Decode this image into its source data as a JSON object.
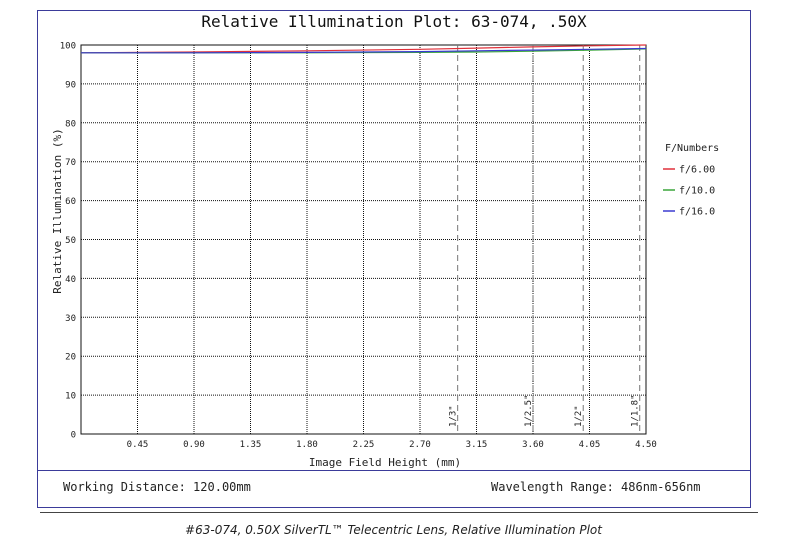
{
  "chart_data": {
    "type": "line",
    "title": "Relative Illumination Plot: 63-074, .50X",
    "xlabel": "Image Field Height (mm)",
    "ylabel": "Relative Illumination (%)",
    "xlim": [
      0,
      4.5
    ],
    "ylim": [
      0,
      100
    ],
    "x_ticks": [
      "0.45",
      "0.90",
      "1.35",
      "1.80",
      "2.25",
      "2.70",
      "3.15",
      "3.60",
      "4.05",
      "4.50"
    ],
    "y_ticks": [
      "0",
      "10",
      "20",
      "30",
      "40",
      "50",
      "60",
      "70",
      "80",
      "90",
      "100"
    ],
    "grid": true,
    "legend_title": "F/Numbers",
    "legend_position": "right",
    "series": [
      {
        "name": "f/6.00",
        "color": "#e0303a",
        "x": [
          0,
          0.9,
          1.8,
          2.7,
          3.15,
          3.6,
          4.05,
          4.5
        ],
        "y": [
          98.0,
          98.2,
          98.5,
          98.9,
          99.2,
          99.5,
          99.8,
          100.0
        ]
      },
      {
        "name": "f/10.0",
        "color": "#3aa63a",
        "x": [
          0,
          0.9,
          1.8,
          2.7,
          3.15,
          3.6,
          4.05,
          4.5
        ],
        "y": [
          98.0,
          98.0,
          98.0,
          98.1,
          98.2,
          98.4,
          98.7,
          99.0
        ]
      },
      {
        "name": "f/16.0",
        "color": "#3a3ad0",
        "x": [
          0,
          0.9,
          1.8,
          2.7,
          3.15,
          3.6,
          4.05,
          4.5
        ],
        "y": [
          98.0,
          98.0,
          98.1,
          98.3,
          98.5,
          98.7,
          98.9,
          99.1
        ]
      }
    ],
    "sensor_markers": [
      {
        "label": "1/3\"",
        "x": 3.0
      },
      {
        "label": "1/2.5\"",
        "x": 3.6
      },
      {
        "label": "1/2\"",
        "x": 4.0
      },
      {
        "label": "1/1.8\"",
        "x": 4.45
      }
    ]
  },
  "footer": {
    "working_distance": "Working Distance: 120.00mm",
    "wavelength_range": "Wavelength Range: 486nm-656nm"
  },
  "caption": "#63-074, 0.50X SilverTL™ Telecentric Lens, Relative Illumination Plot"
}
